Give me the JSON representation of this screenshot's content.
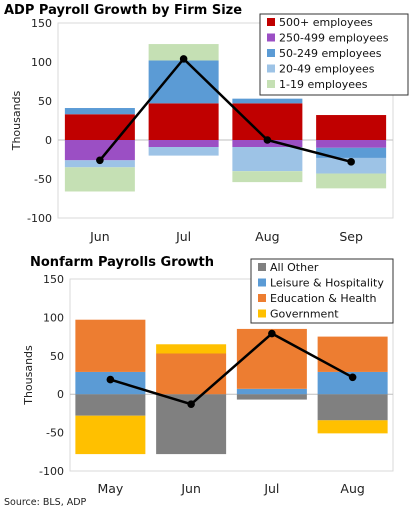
{
  "source": "Source: BLS, ADP",
  "chart_data": [
    {
      "type": "bar",
      "stacked": true,
      "title": "ADP Payroll Growth by Firm Size",
      "ylabel": "Thousands",
      "ylim": [
        -100,
        150
      ],
      "yticks": [
        -100,
        -50,
        0,
        50,
        100,
        150
      ],
      "categories": [
        "Jun",
        "Jul",
        "Aug",
        "Sep"
      ],
      "legend_position": "top-right",
      "series": [
        {
          "name": "500+ employees",
          "color": "#c00000",
          "values": [
            33,
            47,
            47,
            32
          ]
        },
        {
          "name": "250-499 employees",
          "color": "#9b4fc4",
          "values": [
            -26,
            -9,
            -9,
            -10
          ]
        },
        {
          "name": "50-249 employees",
          "color": "#5b9bd5",
          "values": [
            8,
            55,
            6,
            -13
          ]
        },
        {
          "name": "20-49 employees",
          "color": "#9dc3e6",
          "values": [
            -9,
            -11,
            -31,
            -20
          ]
        },
        {
          "name": "1-19 employees",
          "color": "#c5e0b4",
          "values": [
            -31,
            21,
            -14,
            -19
          ]
        }
      ],
      "line": {
        "values": [
          -26,
          104,
          0,
          -28
        ],
        "color": "#000000"
      }
    },
    {
      "type": "bar",
      "stacked": true,
      "title": "Nonfarm Payrolls Growth",
      "ylabel": "Thousands",
      "ylim": [
        -100,
        150
      ],
      "yticks": [
        -100,
        -50,
        0,
        50,
        100,
        150
      ],
      "categories": [
        "May",
        "Jun",
        "Jul",
        "Aug"
      ],
      "legend_position": "top-right",
      "series": [
        {
          "name": "All Other",
          "color": "#808080",
          "values": [
            -28,
            -78,
            -7,
            -34
          ]
        },
        {
          "name": "Leisure & Hospitality",
          "color": "#5b9bd5",
          "values": [
            29,
            0,
            7,
            29
          ]
        },
        {
          "name": "Education & Health",
          "color": "#ed7d31",
          "values": [
            68,
            53,
            78,
            46
          ]
        },
        {
          "name": "Government",
          "color": "#ffc000",
          "values": [
            -50,
            12,
            0,
            -17
          ]
        }
      ],
      "line": {
        "values": [
          19,
          -13,
          79,
          22
        ],
        "color": "#000000"
      }
    }
  ]
}
